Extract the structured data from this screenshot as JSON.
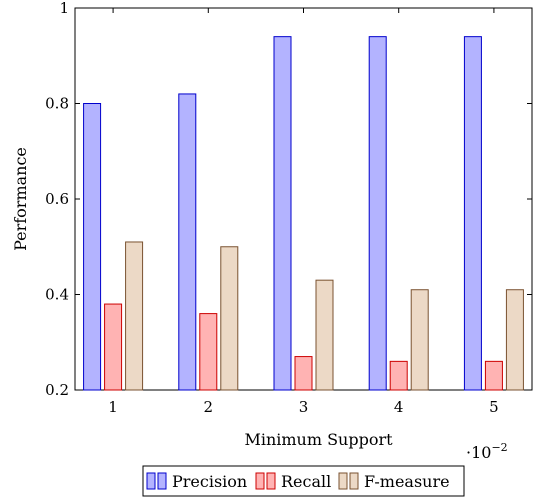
{
  "chart_data": {
    "type": "bar",
    "categories": [
      1,
      2,
      3,
      4,
      5
    ],
    "x_scale_label": "·10",
    "x_scale_exponent": "−2",
    "series": [
      {
        "name": "Precision",
        "values": [
          0.8,
          0.82,
          0.94,
          0.94,
          0.94
        ],
        "fill": "#b3b3ff",
        "stroke": "#0000cc"
      },
      {
        "name": "Recall",
        "values": [
          0.38,
          0.36,
          0.27,
          0.26,
          0.26
        ],
        "fill": "#ffb3b3",
        "stroke": "#cc0000"
      },
      {
        "name": "F-measure",
        "values": [
          0.51,
          0.5,
          0.43,
          0.41,
          0.41
        ],
        "fill": "#ecd9c6",
        "stroke": "#7a5230"
      }
    ],
    "title": "",
    "xlabel": "Minimum Support",
    "ylabel": "Performance",
    "ylim": [
      0.2,
      1.0
    ],
    "yticks": [
      0.2,
      0.4,
      0.6,
      0.8,
      1
    ],
    "ytick_labels": [
      "0.2",
      "0.4",
      "0.6",
      "0.8",
      "1"
    ],
    "grid": false,
    "legend_position": "bottom-center"
  }
}
